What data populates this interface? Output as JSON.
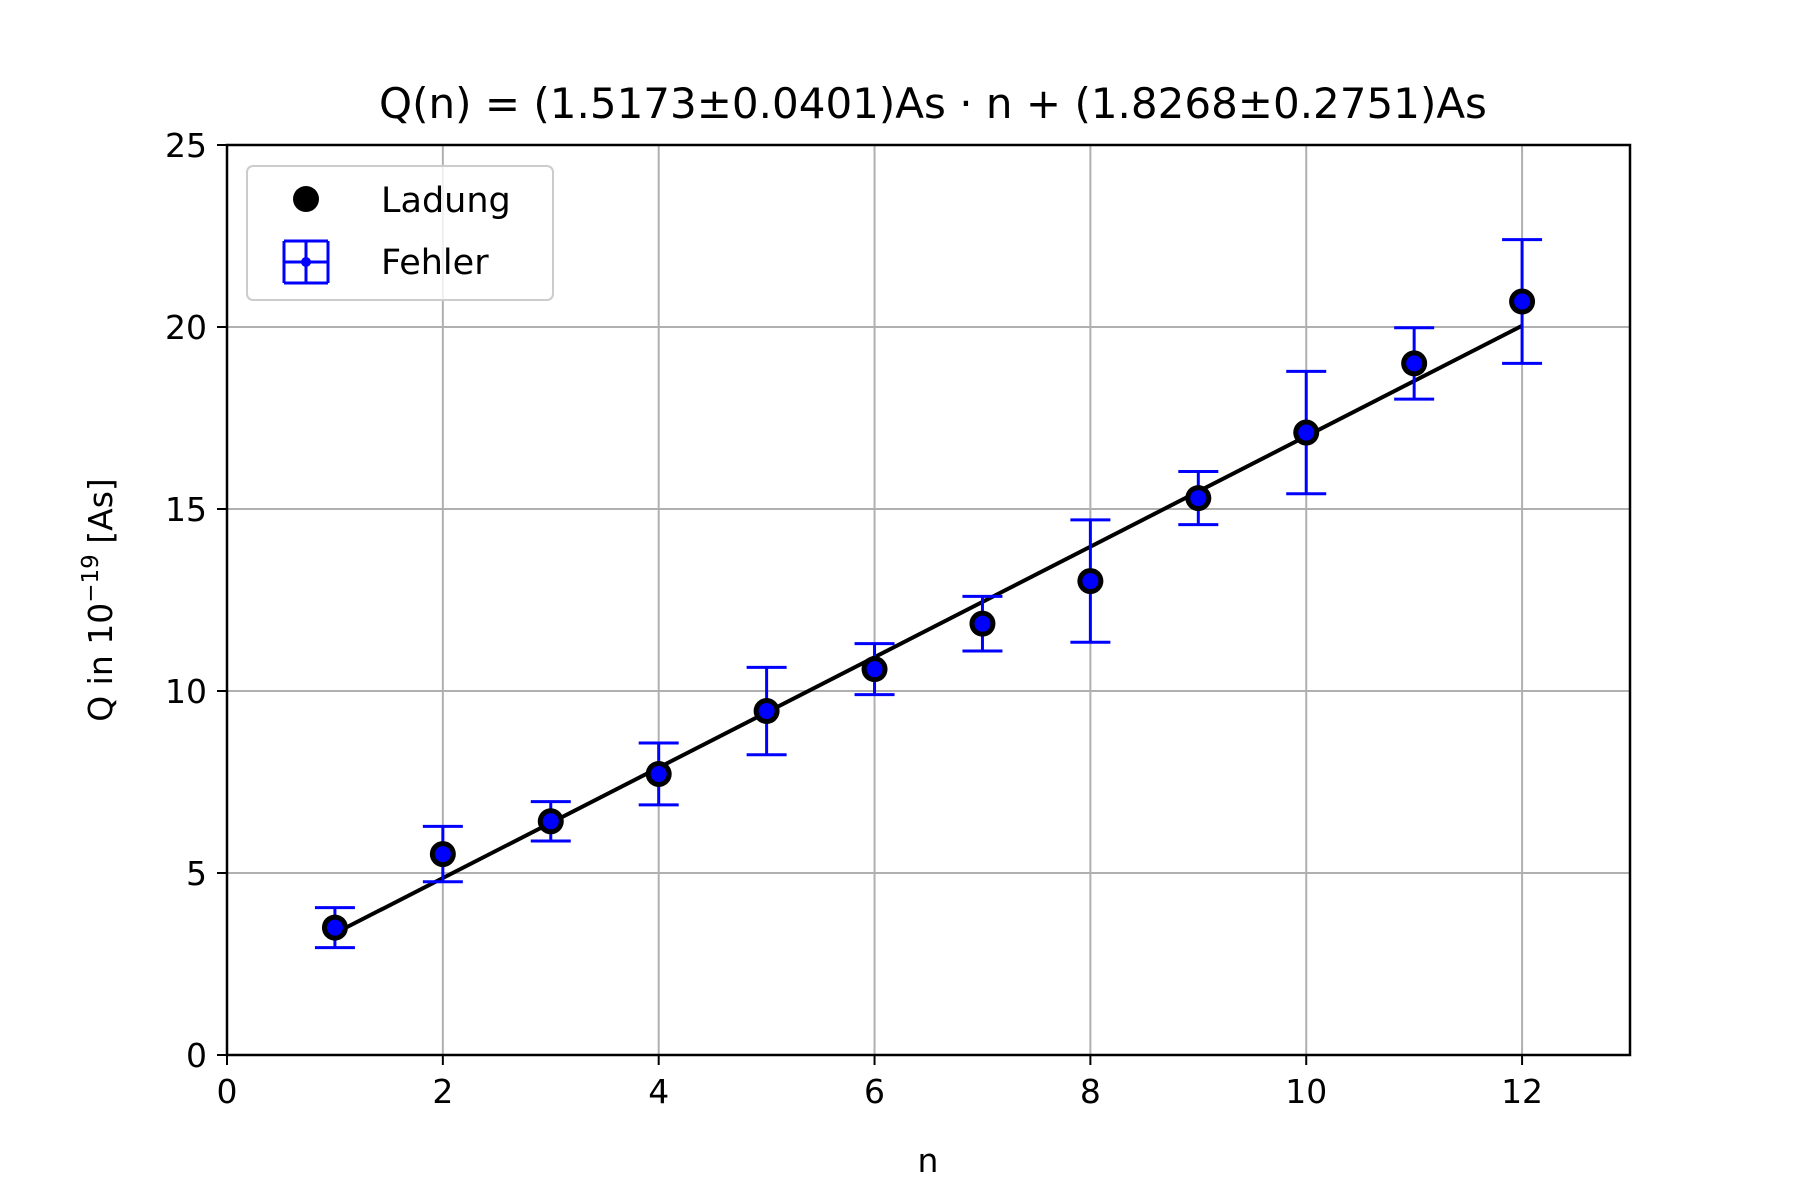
{
  "chart_data": {
    "type": "scatter",
    "title": "Q(n) = (1.5173±0.0401)As · n + (1.8268±0.2751)As",
    "xlabel": "n",
    "ylabel": "Q in 10",
    "ylabel_exponent": "−19",
    "ylabel_suffix": " [As]",
    "xlim": [
      0,
      13
    ],
    "ylim": [
      0,
      25
    ],
    "xticks": [
      0,
      2,
      4,
      6,
      8,
      10,
      12
    ],
    "yticks": [
      0,
      5,
      10,
      15,
      20,
      25
    ],
    "grid": true,
    "legend_position": "top-left",
    "legend": [
      "Ladung",
      "Fehler"
    ],
    "colors": {
      "points": "#000000",
      "errorbars": "#0000ff",
      "fit": "#000000",
      "grid": "#b0b0b0"
    },
    "series": [
      {
        "name": "Ladung",
        "x": [
          1,
          2,
          3,
          4,
          5,
          6,
          7,
          8,
          9,
          10,
          11,
          12
        ],
        "y": [
          3.5,
          5.52,
          6.42,
          7.72,
          9.45,
          10.6,
          11.85,
          13.02,
          15.3,
          17.1,
          19.0,
          20.7
        ],
        "yerr": [
          0.55,
          0.76,
          0.54,
          0.85,
          1.2,
          0.7,
          0.75,
          1.68,
          0.73,
          1.68,
          0.98,
          1.7
        ]
      }
    ],
    "fit": {
      "slope": 1.5173,
      "intercept": 1.8268,
      "x_range": [
        1,
        12
      ]
    }
  }
}
